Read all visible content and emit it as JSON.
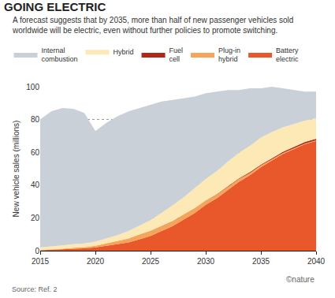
{
  "chart_data": {
    "type": "area",
    "title": "GOING ELECTRIC",
    "subtitle": "A forecast suggests that by 2035, more than half of new passenger vehicles sold worldwide will be electric, even without further policies to promote switching.",
    "y_label": "New vehicle sales (millions)",
    "source": "Source: Ref. 2",
    "credit": "©nature",
    "stacked": true,
    "grid": true,
    "legend": "top",
    "x": [
      2015,
      2016,
      2017,
      2018,
      2019,
      2020,
      2021,
      2022,
      2023,
      2024,
      2025,
      2026,
      2027,
      2028,
      2029,
      2030,
      2031,
      2032,
      2033,
      2034,
      2035,
      2036,
      2037,
      2038,
      2039,
      2040
    ],
    "xlim": [
      2015,
      2040
    ],
    "xticks": [
      2015,
      2020,
      2025,
      2030,
      2035,
      2040
    ],
    "ylim": [
      0,
      100
    ],
    "yticks": [
      0,
      20,
      40,
      60,
      80,
      100
    ],
    "series": [
      {
        "name": "Battery electric",
        "color": "#e8582a",
        "values": [
          0.3,
          0.5,
          0.8,
          1.2,
          1.5,
          2,
          3,
          4,
          5,
          7,
          9,
          12,
          15,
          19,
          23,
          28,
          32,
          37,
          42,
          46,
          51,
          55,
          59,
          62,
          65,
          67
        ]
      },
      {
        "name": "Plug-in hybrid",
        "color": "#f6a45a",
        "values": [
          0.2,
          0.3,
          0.4,
          0.6,
          0.7,
          1,
          1.5,
          2,
          2.5,
          3,
          3,
          3,
          3,
          3,
          2.8,
          2.5,
          2.2,
          2,
          1.7,
          1.4,
          1,
          0.8,
          0.6,
          0.5,
          0.4,
          0.3
        ]
      },
      {
        "name": "Fuel cell",
        "color": "#b0281a",
        "values": [
          0,
          0,
          0,
          0,
          0,
          0,
          0,
          0,
          0,
          0,
          0.1,
          0.1,
          0.1,
          0.1,
          0.2,
          0.2,
          0.3,
          0.3,
          0.4,
          0.5,
          0.5,
          0.6,
          0.7,
          0.8,
          0.9,
          1
        ]
      },
      {
        "name": "Hybrid",
        "color": "#fde9b5",
        "values": [
          1.5,
          1.7,
          2,
          2.2,
          2.3,
          2.5,
          3,
          3.5,
          4.5,
          5.5,
          6.5,
          8,
          9.5,
          10.5,
          12,
          13,
          14,
          15,
          15.5,
          16,
          16.5,
          16,
          15,
          14,
          13,
          12.5
        ]
      },
      {
        "name": "Internal combustion",
        "color": "#c9d0d8",
        "values": [
          78,
          82.5,
          83.8,
          82.5,
          79.5,
          67.5,
          70.5,
          72.5,
          73,
          71.5,
          70.4,
          67.9,
          64.4,
          60.4,
          56,
          52.3,
          48.5,
          43.7,
          38.4,
          35.1,
          30,
          27.6,
          23.7,
          20.7,
          17.7,
          16.2
        ]
      }
    ]
  }
}
